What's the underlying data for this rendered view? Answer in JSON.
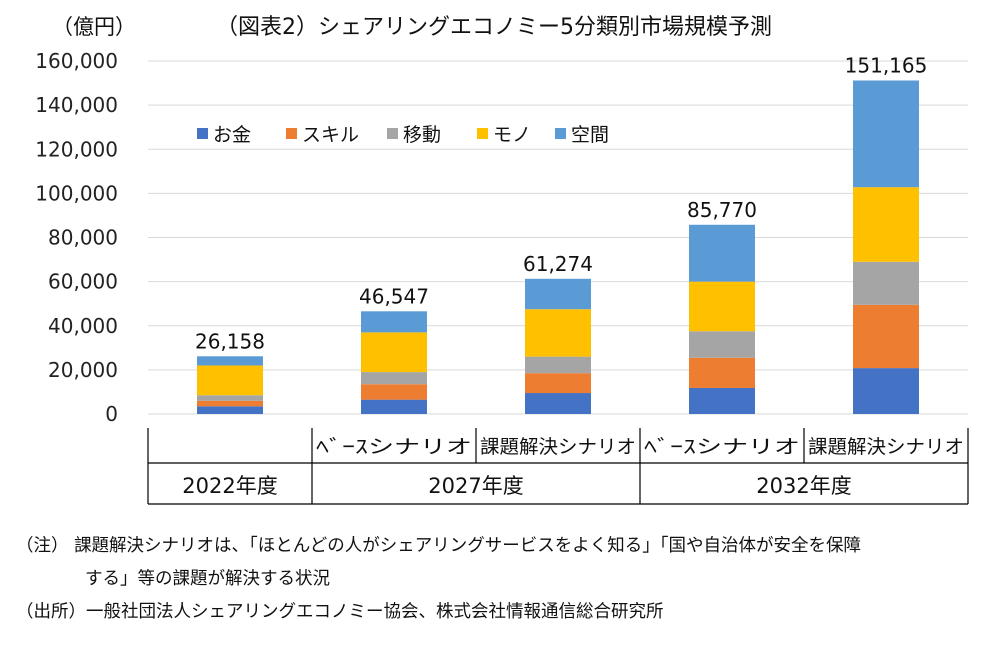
{
  "chart_data": {
    "type": "bar",
    "stacked": true,
    "title": "（図表2）シェアリングエコノミー5分類別市場規模予測",
    "unit_label": "（億円）",
    "ylim": [
      0,
      160000
    ],
    "yticks": [
      "0",
      "20,000",
      "40,000",
      "60,000",
      "80,000",
      "100,000",
      "120,000",
      "140,000",
      "160,000"
    ],
    "ytick_values": [
      0,
      20000,
      40000,
      60000,
      80000,
      100000,
      120000,
      140000,
      160000
    ],
    "grid": true,
    "legend_position": "top-left",
    "categories": [
      "",
      "ﾍﾞｰｽシナリオ",
      "課題解決シナリオ",
      "ﾍﾞｰｽシナリオ",
      "課題解決シナリオ"
    ],
    "groups": [
      {
        "label": "2022年度"
      },
      {
        "label": "2027年度"
      },
      {
        "label": "2032年度"
      }
    ],
    "totals": [
      26158,
      46547,
      61274,
      85770,
      151165
    ],
    "total_labels": [
      "26,158",
      "46,547",
      "61,274",
      "85,770",
      "151,165"
    ],
    "series": [
      {
        "name": "お金",
        "color": "#4472C4",
        "values": [
          3500,
          6500,
          9500,
          11800,
          20800
        ]
      },
      {
        "name": "スキル",
        "color": "#ED7D31",
        "values": [
          2500,
          7000,
          9000,
          13700,
          28700
        ]
      },
      {
        "name": "移動",
        "color": "#A5A5A5",
        "values": [
          2500,
          5500,
          7500,
          12000,
          19500
        ]
      },
      {
        "name": "モノ",
        "color": "#FFC000",
        "values": [
          13500,
          18000,
          21500,
          22500,
          33800
        ]
      },
      {
        "name": "空間",
        "color": "#5B9BD5",
        "values": [
          4158,
          9547,
          13774,
          25770,
          48365
        ]
      }
    ]
  },
  "notes": {
    "line1": "（注）  課題解決シナリオは、「ほとんどの人がシェアリングサービスをよく知る」「国や自治体が安全を保障",
    "line2": "する」等の課題が解決する状況",
    "line3": "（出所）一般社団法人シェアリングエコノミー協会、株式会社情報通信総合研究所"
  }
}
